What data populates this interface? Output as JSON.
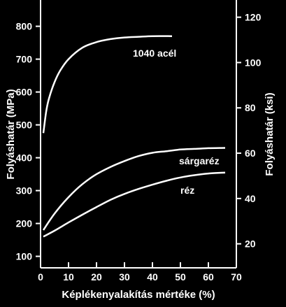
{
  "chart_data": {
    "type": "line",
    "xlabel": "Képlékenyalakítás mértéke (%)",
    "ylabel": "Folyáshatár (MPa)",
    "y2label": "Folyáshatár (ksi)",
    "xlim": [
      0,
      70
    ],
    "ylim": [
      65,
      880
    ],
    "y2lim": [
      9.4,
      127.6
    ],
    "xticks": [
      "0",
      "10",
      "20",
      "30",
      "40",
      "50",
      "60",
      "70"
    ],
    "yticks": [
      "100",
      "200",
      "300",
      "400",
      "500",
      "600",
      "700",
      "800"
    ],
    "y2ticks": [
      "20",
      "40",
      "60",
      "80",
      "100",
      "120"
    ],
    "grid": false,
    "series": [
      {
        "name": "1040 acél",
        "x": [
          1,
          2,
          3,
          5,
          7,
          10,
          15,
          20,
          25,
          30,
          35,
          40,
          47
        ],
        "y": [
          475,
          540,
          580,
          630,
          665,
          700,
          735,
          752,
          761,
          766,
          768,
          770,
          770
        ]
      },
      {
        "name": "sárgaréz",
        "x": [
          1,
          5,
          10,
          15,
          20,
          25,
          30,
          35,
          40,
          45,
          50,
          55,
          60,
          66
        ],
        "y": [
          180,
          230,
          280,
          320,
          350,
          372,
          390,
          405,
          415,
          420,
          425,
          427,
          429,
          430
        ]
      },
      {
        "name": "réz",
        "x": [
          1,
          5,
          10,
          15,
          20,
          25,
          30,
          35,
          40,
          45,
          50,
          55,
          60,
          66
        ],
        "y": [
          160,
          178,
          203,
          227,
          250,
          272,
          290,
          305,
          318,
          330,
          340,
          347,
          352,
          355
        ]
      }
    ]
  }
}
